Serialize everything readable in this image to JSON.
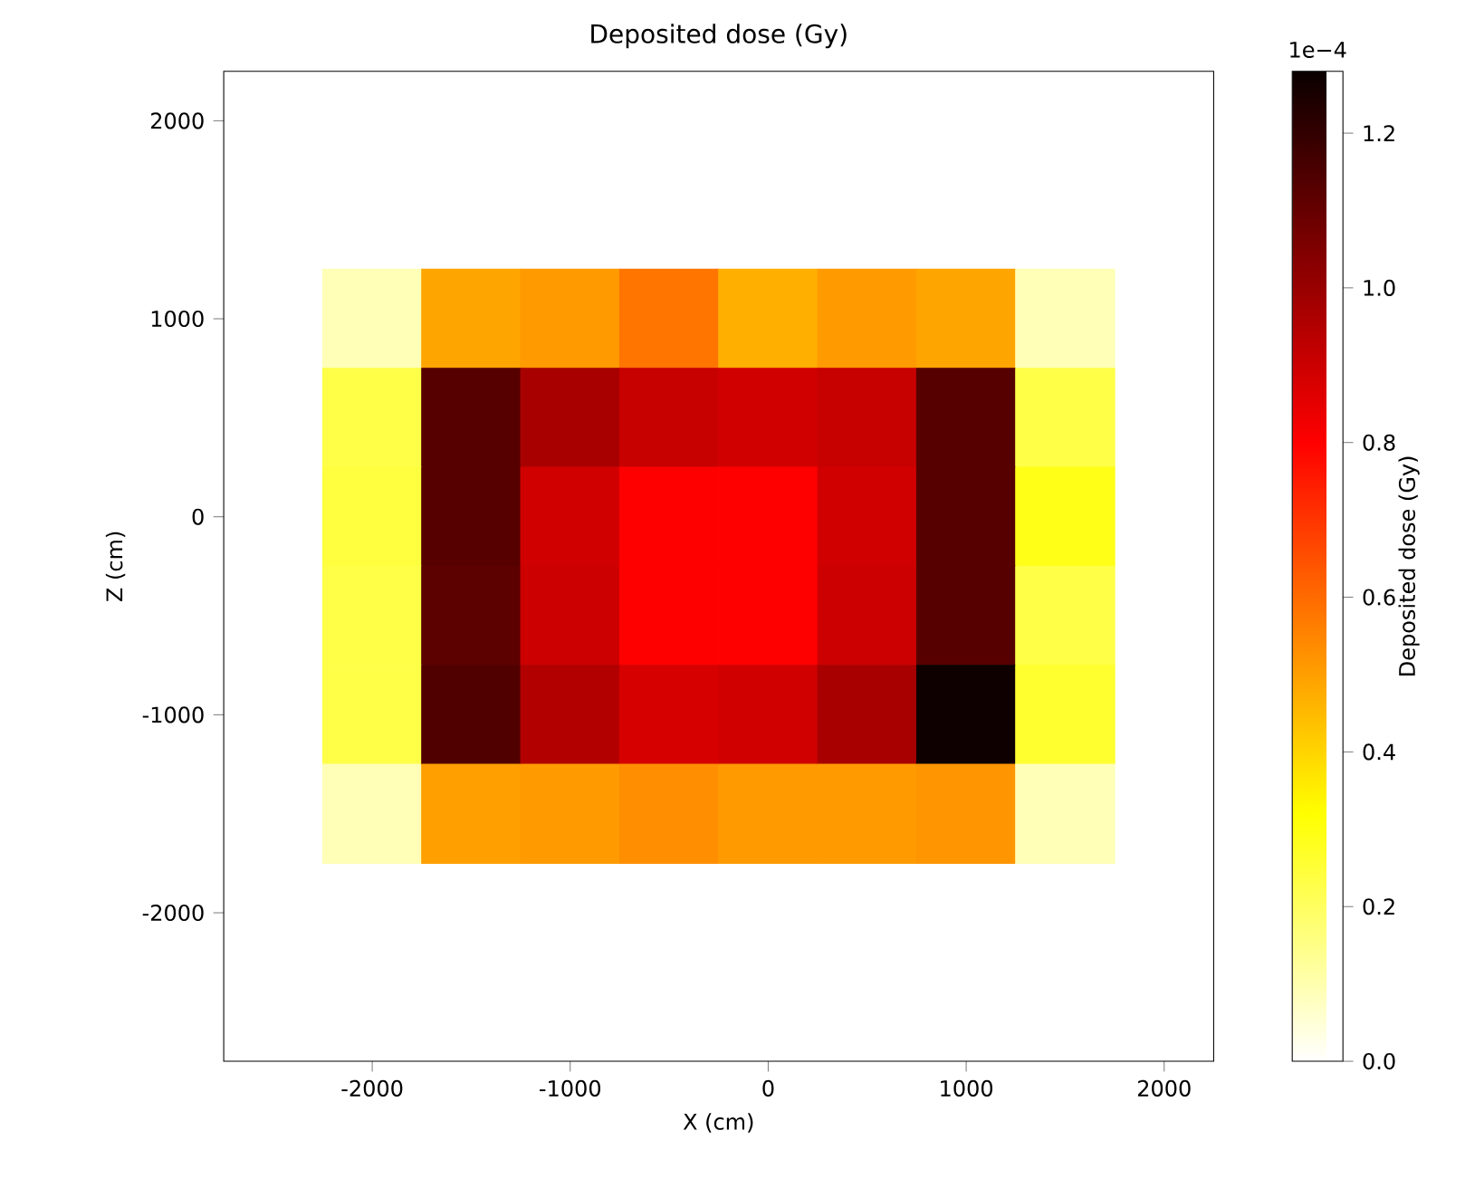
{
  "chart_data": {
    "type": "heatmap",
    "title": "Deposited dose (Gy)",
    "xlabel": "X (cm)",
    "ylabel": "Z (cm)",
    "clabel": "Deposited dose (Gy)",
    "annotations": [
      "1e−4"
    ],
    "x": [
      -2000,
      -1500,
      -1000,
      -500,
      0,
      500,
      1000,
      1500
    ],
    "y": [
      1000,
      500,
      0,
      -500,
      -1000,
      -1500
    ],
    "cells": [
      [
        0.09,
        0.49,
        0.51,
        0.58,
        0.47,
        0.51,
        0.49,
        0.09
      ],
      [
        0.23,
        1.13,
        0.97,
        0.91,
        0.89,
        0.91,
        1.13,
        0.23
      ],
      [
        0.24,
        1.13,
        0.89,
        0.8,
        0.8,
        0.89,
        1.13,
        0.29
      ],
      [
        0.23,
        1.12,
        0.9,
        0.8,
        0.8,
        0.9,
        1.13,
        0.23
      ],
      [
        0.23,
        1.14,
        0.95,
        0.88,
        0.89,
        0.97,
        1.27,
        0.26
      ],
      [
        0.09,
        0.5,
        0.51,
        0.53,
        0.51,
        0.51,
        0.52,
        0.09
      ]
    ],
    "xlim": [
      -2750,
      2250
    ],
    "ylim": [
      -2750,
      2250
    ],
    "xticks": [
      -2000,
      -1000,
      0,
      1000,
      2000
    ],
    "yticks": [
      -2000,
      -1000,
      0,
      1000,
      2000
    ],
    "clim": [
      0,
      1.28
    ],
    "cticks": [
      {
        "value": 0,
        "label": "0.0"
      },
      {
        "value": 0.2,
        "label": "0.2"
      },
      {
        "value": 0.4,
        "label": "0.4"
      },
      {
        "value": 0.6,
        "label": "0.6"
      },
      {
        "value": 0.8,
        "label": "0.8"
      },
      {
        "value": 1.0,
        "label": "1.0"
      },
      {
        "value": 1.2,
        "label": "1.2"
      }
    ]
  }
}
